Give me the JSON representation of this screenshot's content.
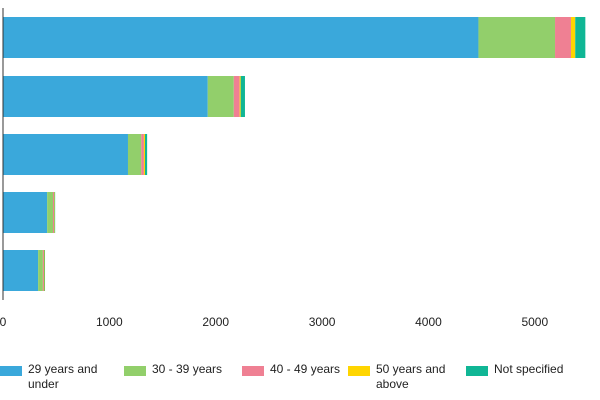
{
  "chart_data": {
    "type": "bar",
    "orientation": "horizontal",
    "stacked": true,
    "title": "",
    "xlabel": "",
    "ylabel": "",
    "xlim": [
      0,
      5500
    ],
    "x_ticks": [
      "0",
      "1000",
      "2000",
      "3000",
      "4000",
      "5000"
    ],
    "grid": false,
    "legend_position": "bottom",
    "categories": [
      "",
      "",
      "",
      "",
      ""
    ],
    "series": [
      {
        "name": "29 years and under",
        "color": "#3AA8DB",
        "values": [
          4470,
          1925,
          1175,
          415,
          330
        ]
      },
      {
        "name": "30 - 39 years",
        "color": "#92CF6B",
        "values": [
          720,
          245,
          125,
          55,
          45
        ]
      },
      {
        "name": "40 - 49 years",
        "color": "#EF8093",
        "values": [
          150,
          55,
          25,
          10,
          10
        ]
      },
      {
        "name": "50 years and above",
        "color": "#FFD500",
        "values": [
          40,
          10,
          10,
          5,
          5
        ]
      },
      {
        "name": "Not specified",
        "color": "#10B695",
        "values": [
          95,
          40,
          20,
          5,
          5
        ]
      }
    ]
  }
}
